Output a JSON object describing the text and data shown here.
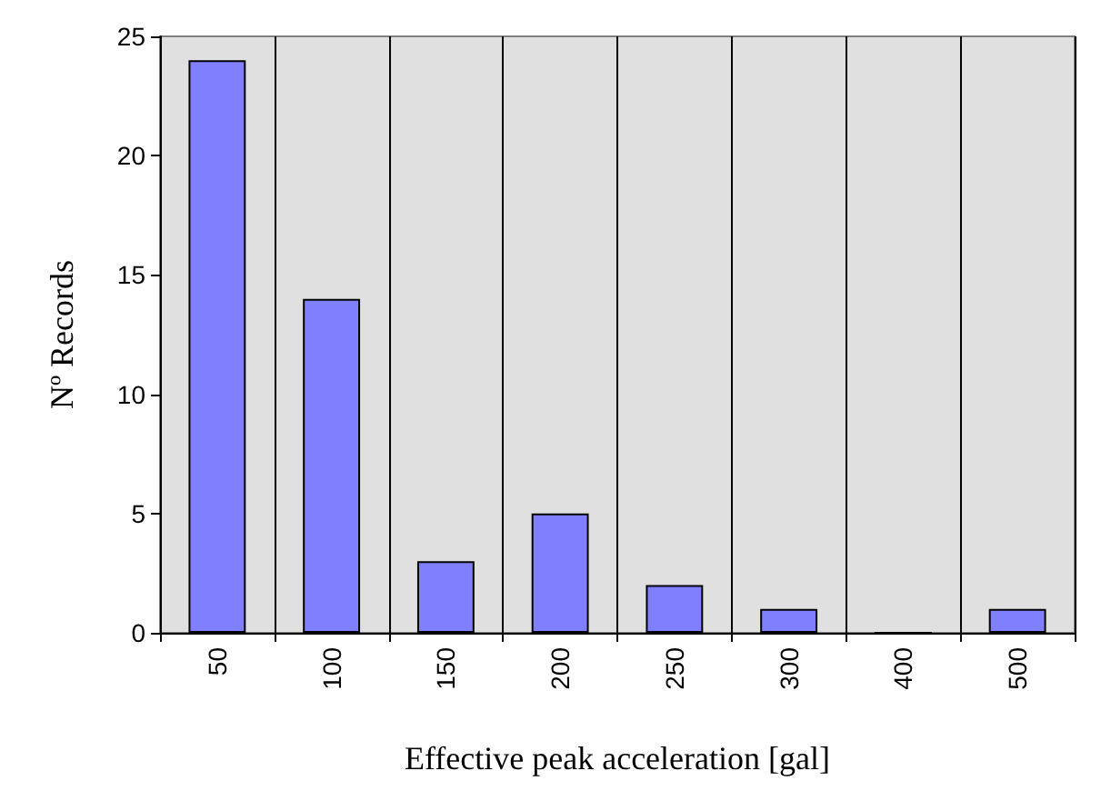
{
  "chart_data": {
    "type": "bar",
    "xlabel": "Effective peak acceleration [gal]",
    "ylabel": "Nº Records",
    "categories": [
      "50",
      "100",
      "150",
      "200",
      "250",
      "300",
      "400",
      "500"
    ],
    "values": [
      24,
      14,
      3,
      5,
      2,
      1,
      0,
      1
    ],
    "color": "#8080ff",
    "ylim": [
      0,
      25
    ],
    "yticks": [
      0,
      5,
      10,
      15,
      20,
      25
    ],
    "grid": "x"
  }
}
